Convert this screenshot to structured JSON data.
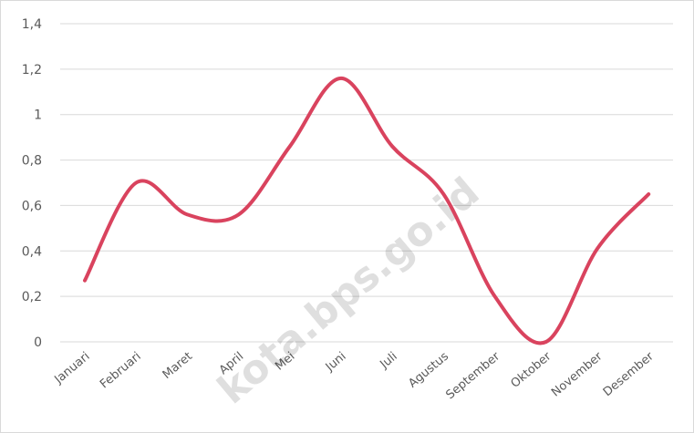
{
  "chart_data": {
    "type": "line",
    "title": "",
    "xlabel": "",
    "ylabel": "",
    "categories": [
      "Januari",
      "Februari",
      "Maret",
      "April",
      "Mei",
      "Juni",
      "Juli",
      "Agustus",
      "September",
      "Oktober",
      "November",
      "Desember"
    ],
    "series": [
      {
        "values": [
          0.27,
          0.7,
          0.56,
          0.56,
          0.86,
          1.16,
          0.86,
          0.65,
          0.2,
          0.0,
          0.41,
          0.65
        ],
        "color": "#d9435e"
      }
    ],
    "ylim": [
      0,
      1.4
    ],
    "yticks": [
      "0",
      "0,2",
      "0,4",
      "0,6",
      "0,8",
      "1",
      "1,2",
      "1,4"
    ],
    "grid": true,
    "smooth": true
  },
  "watermark": {
    "text": "kota.bps.go.id"
  },
  "colors": {
    "line": "#d9435e",
    "grid": "#d9d9d9",
    "text": "#595959"
  }
}
